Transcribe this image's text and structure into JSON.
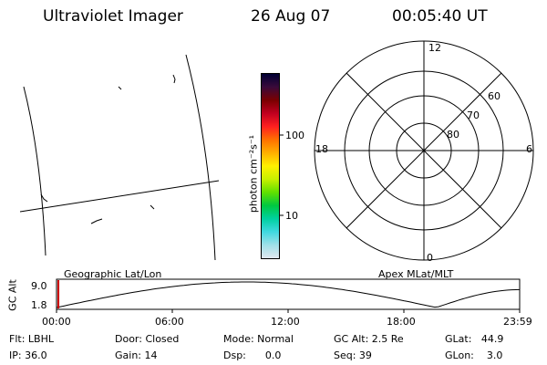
{
  "header": {
    "instrument": "Ultraviolet Imager",
    "date": "26 Aug 07",
    "time": "00:05:40 UT"
  },
  "colorbar": {
    "unit_label": "photon cm⁻²s⁻¹",
    "tick_100": "100",
    "tick_10": "10",
    "colors_top_to_bottom": [
      "#000033",
      "#3a0a3a",
      "#7a0000",
      "#c00020",
      "#ff2020",
      "#ff7000",
      "#ffb000",
      "#fff000",
      "#c8f000",
      "#60e000",
      "#00c840",
      "#00d0a0",
      "#40d8e0",
      "#a0e0e8",
      "#e0e8f0"
    ]
  },
  "polar": {
    "label_12": "12",
    "label_18": "18",
    "label_6": "6",
    "label_0": "0",
    "lat_60": "60",
    "lat_70": "70",
    "lat_80": "80"
  },
  "timeline": {
    "gc_alt_label": "GC Alt",
    "y_top": "9.0",
    "y_bottom": "1.8",
    "left_title": "Geographic Lat/Lon",
    "right_title": "Apex MLat/MLT",
    "ticks": [
      "00:00",
      "06:00",
      "12:00",
      "18:00",
      "23:59"
    ],
    "current_fraction": 0.004
  },
  "info": {
    "flt": "Flt: LBHL",
    "ip": "IP: 36.0",
    "door": "Door: Closed",
    "gain": "Gain: 14",
    "mode": "Mode: Normal",
    "dsp": "Dsp:      0.0",
    "gcalt": "GC Alt: 2.5 Re",
    "seq": "Seq: 39",
    "glat": "GLat:   44.9",
    "glon": "GLon:    3.0"
  },
  "colors": {
    "marker": "#cc0000",
    "ink": "#000000"
  }
}
